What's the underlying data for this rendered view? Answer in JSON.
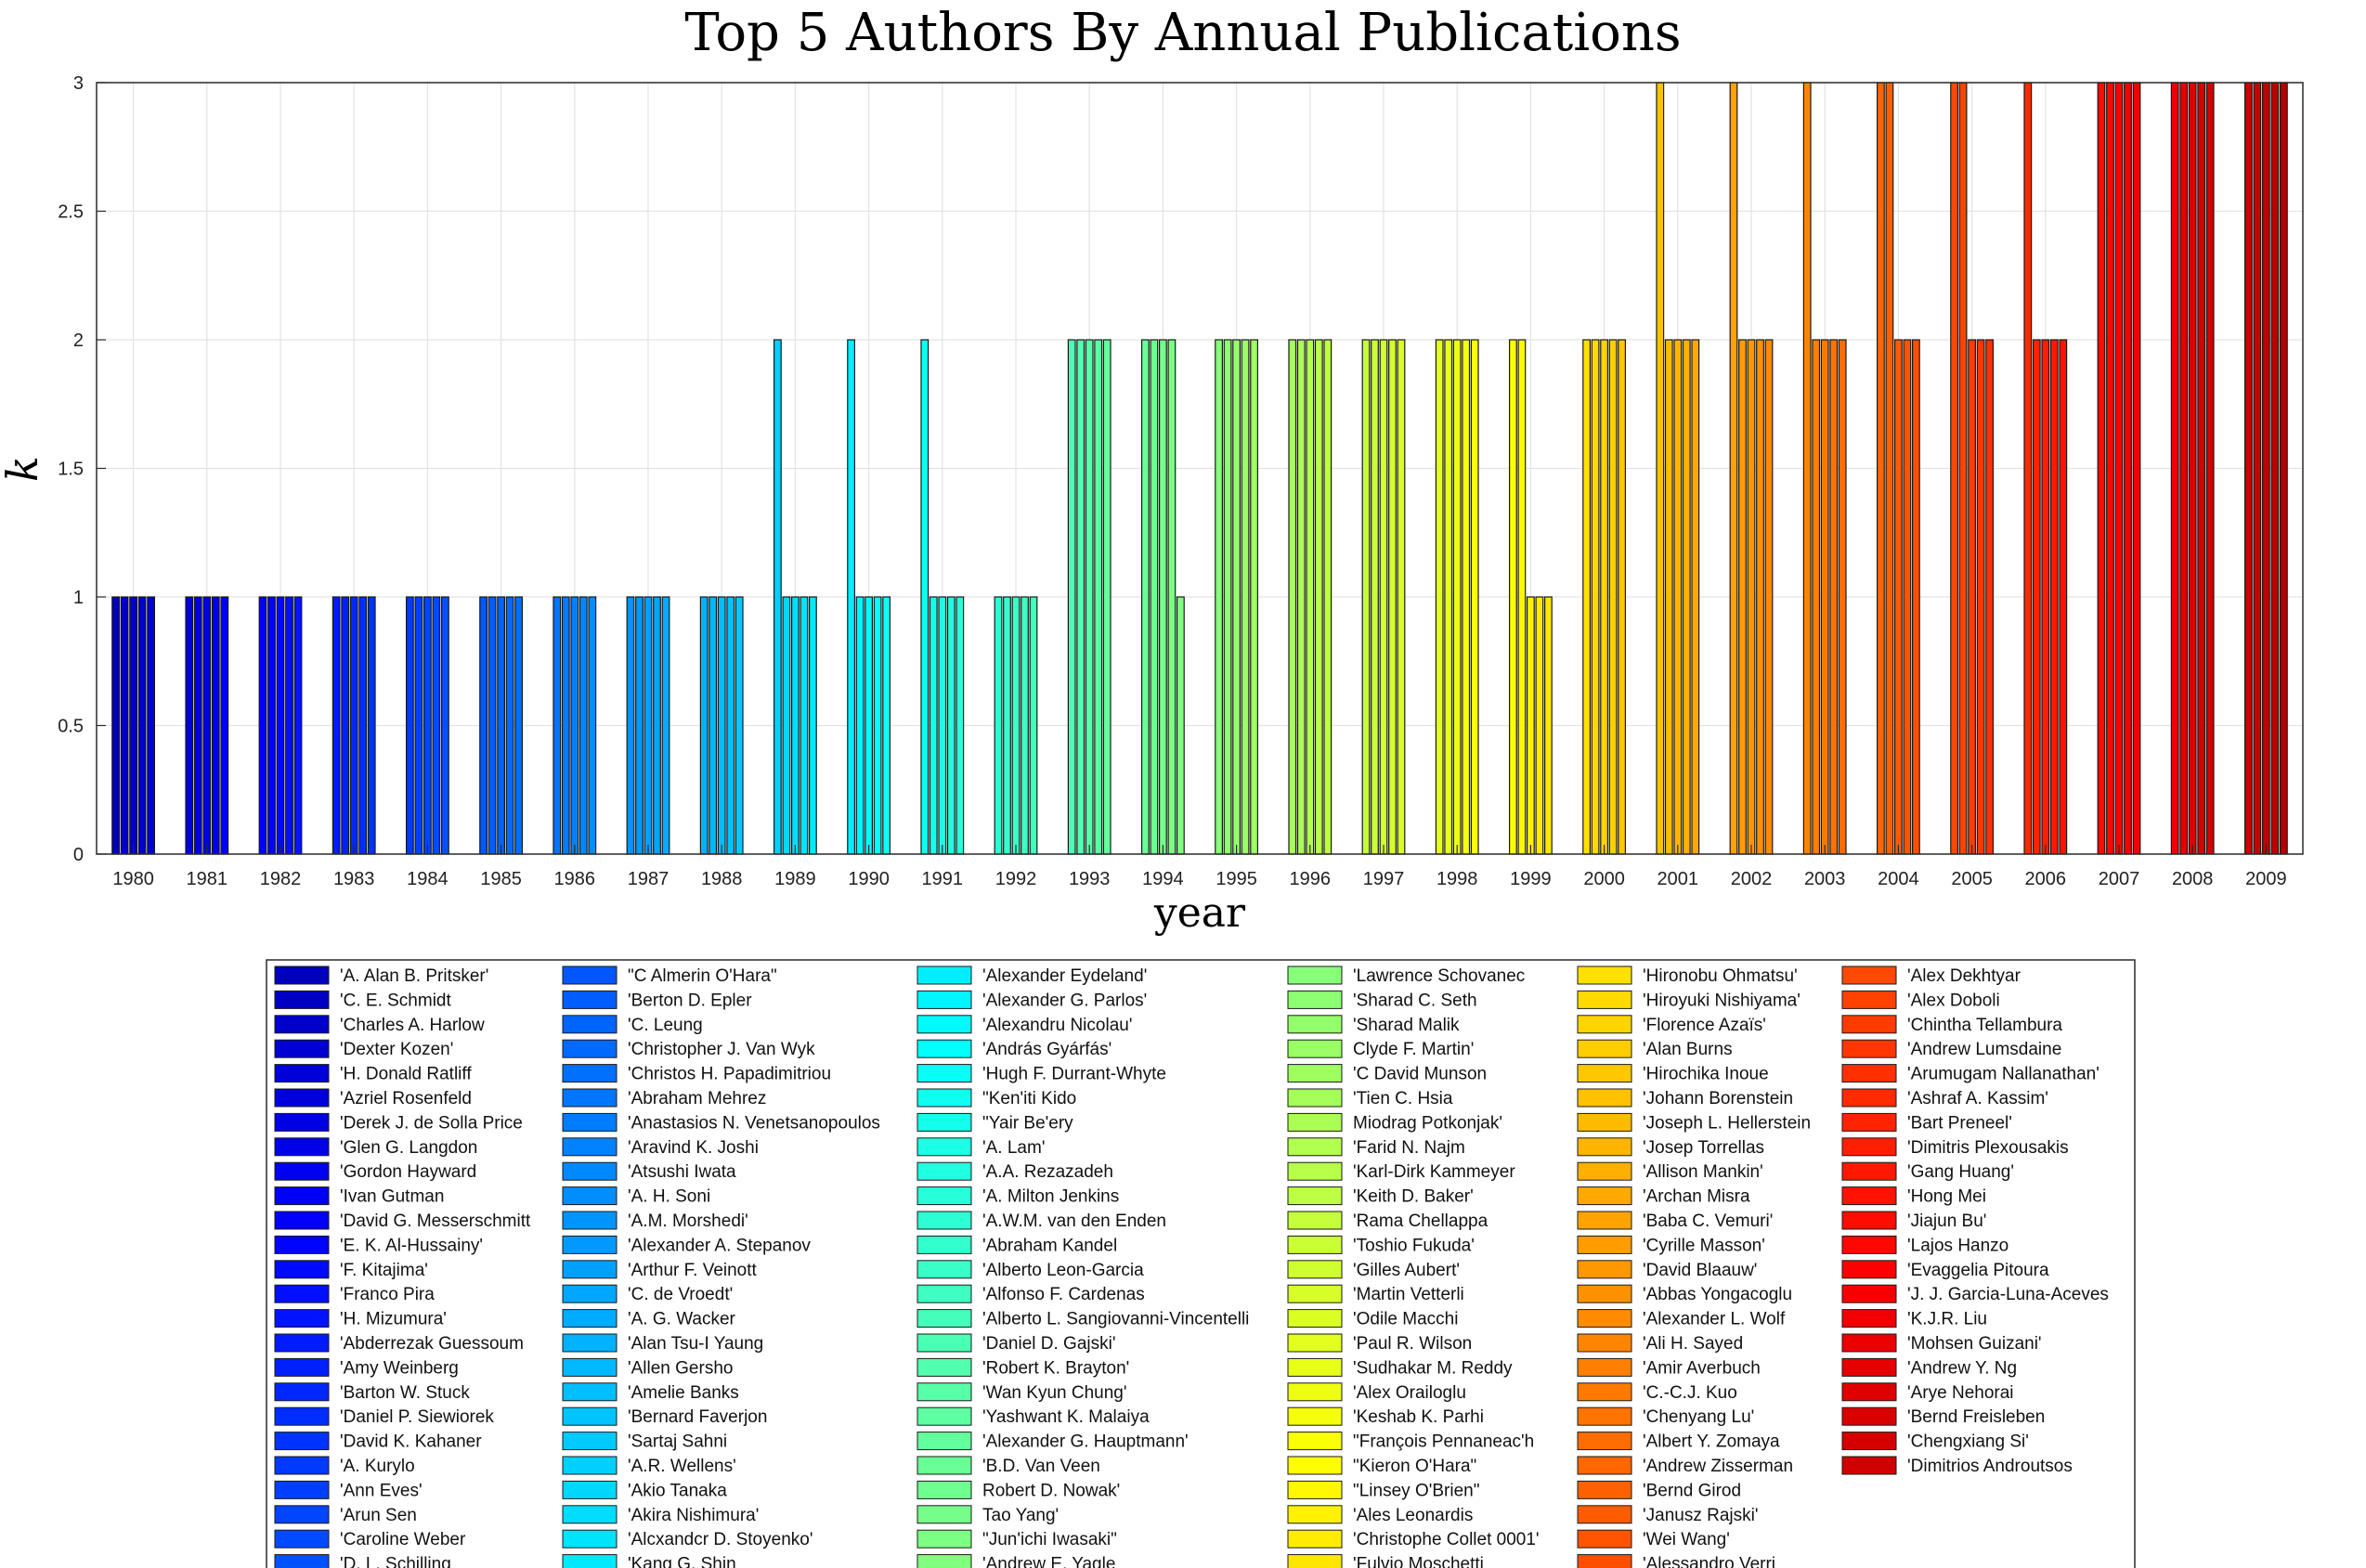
{
  "chart_data": {
    "type": "bar",
    "title": "Top 5 Authors By Annual Publications",
    "xlabel": "year",
    "ylabel": "k",
    "ylim": [
      0,
      3
    ],
    "yticks": [
      "0",
      "0.5",
      "1",
      "1.5",
      "2",
      "2.5",
      "3"
    ],
    "grid": true,
    "legend_position": "bottom",
    "categories": [
      "1980",
      "1981",
      "1982",
      "1983",
      "1984",
      "1985",
      "1986",
      "1987",
      "1988",
      "1989",
      "1990",
      "1991",
      "1992",
      "1993",
      "1994",
      "1995",
      "1996",
      "1997",
      "1998",
      "1999",
      "2000",
      "2001",
      "2002",
      "2003",
      "2004",
      "2005",
      "2006",
      "2007",
      "2008",
      "2009"
    ],
    "values": [
      [
        1,
        1,
        1,
        1,
        1
      ],
      [
        1,
        1,
        1,
        1,
        1
      ],
      [
        1,
        1,
        1,
        1,
        1
      ],
      [
        1,
        1,
        1,
        1,
        1
      ],
      [
        1,
        1,
        1,
        1,
        1
      ],
      [
        1,
        1,
        1,
        1,
        1
      ],
      [
        1,
        1,
        1,
        1,
        1
      ],
      [
        1,
        1,
        1,
        1,
        1
      ],
      [
        1,
        1,
        1,
        1,
        1
      ],
      [
        2,
        1,
        1,
        1,
        1
      ],
      [
        2,
        1,
        1,
        1,
        1
      ],
      [
        2,
        1,
        1,
        1,
        1
      ],
      [
        1,
        1,
        1,
        1,
        1
      ],
      [
        2,
        2,
        2,
        2,
        2
      ],
      [
        2,
        2,
        2,
        2,
        1
      ],
      [
        2,
        2,
        2,
        2,
        2
      ],
      [
        2,
        2,
        2,
        2,
        2
      ],
      [
        2,
        2,
        2,
        2,
        2
      ],
      [
        2,
        2,
        2,
        2,
        2
      ],
      [
        2,
        2,
        1,
        1,
        1
      ],
      [
        2,
        2,
        2,
        2,
        2
      ],
      [
        3,
        2,
        2,
        2,
        2
      ],
      [
        3,
        2,
        2,
        2,
        2
      ],
      [
        3,
        2,
        2,
        2,
        2
      ],
      [
        3,
        3,
        2,
        2,
        2
      ],
      [
        3,
        3,
        2,
        2,
        2
      ],
      [
        3,
        2,
        2,
        2,
        2
      ],
      [
        3,
        3,
        3,
        3,
        3
      ],
      [
        3,
        3,
        3,
        3,
        3
      ],
      [
        3,
        3,
        3,
        3,
        3
      ]
    ],
    "authors": [
      "'A. Alan B. Pritsker'",
      "'C. E. Schmidt",
      "'Charles A. Harlow",
      "'Dexter Kozen'",
      "'H. Donald Ratliff",
      "'Azriel Rosenfeld",
      "'Derek J. de Solla Price",
      "'Glen G. Langdon",
      "'Gordon Hayward",
      "'Ivan Gutman",
      "'David G. Messerschmitt",
      "'E. K. Al-Hussainy'",
      "'F. Kitajima'",
      "'Franco Pira",
      "'H. Mizumura'",
      "'Abderrezak Guessoum",
      "'Amy Weinberg",
      "'Barton W. Stuck",
      "'Daniel P. Siewiorek",
      "'David K. Kahaner",
      "'A. Kurylo",
      "'Ann Eves'",
      "'Arun Sen",
      "'Caroline Weber",
      "'D. L. Schilling",
      "\"C Almerin O'Hara\"",
      "'Berton D. Epler",
      "'C. Leung",
      "'Christopher J. Van Wyk",
      "'Christos H. Papadimitriou",
      "'Abraham Mehrez",
      "'Anastasios N. Venetsanopoulos",
      "'Aravind K. Joshi",
      "'Atsushi Iwata",
      "'A. H. Soni",
      "'A.M. Morshedi'",
      "'Alexander A. Stepanov",
      "'Arthur F. Veinott",
      "'C. de Vroedt'",
      "'A. G. Wacker",
      "'Alan Tsu-I Yaung",
      "'Allen Gersho",
      "'Amelie Banks",
      "'Bernard Faverjon",
      "'Sartaj Sahni",
      "'A.R. Wellens'",
      "'Akio Tanaka",
      "'Akira Nishimura'",
      "'Alcxandcr D. Stoyenko'",
      "'Kang G. Shin",
      "'Alexander Eydeland'",
      "'Alexander G. Parlos'",
      "'Alexandru Nicolau'",
      "'András Gyárfás'",
      "'Hugh F. Durrant-Whyte",
      "\"Ken'iti Kido",
      "\"Yair Be'ery",
      "'A. Lam'",
      "'A.A. Rezazadeh",
      "'A. Milton Jenkins",
      "'A.W.M. van den Enden",
      "'Abraham Kandel",
      "'Alberto Leon-Garcia",
      "'Alfonso F. Cardenas",
      "'Alberto L. Sangiovanni-Vincentelli",
      "'Daniel D. Gajski'",
      "'Robert K. Brayton'",
      "'Wan Kyun Chung'",
      "'Yashwant K. Malaiya",
      "'Alexander G. Hauptmann'",
      "'B.D. Van Veen",
      "Robert D. Nowak'",
      "Tao Yang'",
      "\"Jun'ichi Iwasaki\"",
      "'Andrew E. Yagle",
      "'Lawrence Schovanec",
      "'Sharad C. Seth",
      "'Sharad Malik",
      "Clyde F. Martin'",
      "'C David Munson",
      "'Tien C. Hsia",
      "Miodrag Potkonjak'",
      "'Farid N. Najm",
      "'Karl-Dirk Kammeyer",
      "'Keith D. Baker'",
      "'Rama Chellappa",
      "'Toshio Fukuda'",
      "'Gilles Aubert'",
      "'Martin Vetterli",
      "'Odile Macchi",
      "'Paul R. Wilson",
      "'Sudhakar M. Reddy",
      "'Alex Orailoglu",
      "'Keshab K. Parhi",
      "\"François Pennaneac'h",
      "\"Kieron O'Hara\"",
      "\"Linsey O'Brien\"",
      "'Ales Leonardis",
      "'Christophe Collet 0001'",
      "'Fulvio Moschetti",
      "'Hironobu Ohmatsu'",
      "'Hiroyuki Nishiyama'",
      "'Florence Azaïs'",
      "'Alan Burns",
      "'Hirochika Inoue",
      "'Johann Borenstein",
      "'Joseph L. Hellerstein",
      "'Josep Torrellas",
      "'Allison Mankin'",
      "'Archan Misra",
      "'Baba C. Vemuri'",
      "'Cyrille Masson'",
      "'David Blaauw'",
      "'Abbas Yongacoglu",
      "'Alexander L. Wolf",
      "'Ali H. Sayed",
      "'Amir Averbuch",
      "'C.-C.J. Kuo",
      "'Chenyang Lu'",
      "'Albert Y. Zomaya",
      "'Andrew Zisserman",
      "'Bernd Girod",
      "'Janusz Rajski'",
      "'Wei Wang'",
      "'Alessandro Verri",
      "'Alex Dekhtyar",
      "'Alex Doboli",
      "'Chintha Tellambura",
      "'Andrew Lumsdaine",
      "'Arumugam Nallanathan'",
      "'Ashraf A. Kassim'",
      "'Bart Preneel'",
      "'Dimitris Plexousakis",
      "'Gang Huang'",
      "'Hong Mei",
      "'Jiajun Bu'",
      "'Lajos Hanzo",
      "'Evaggelia Pitoura",
      "'J. J. Garcia-Luna-Aceves",
      "'K.J.R. Liu",
      "'Mohsen Guizani'",
      "'Andrew Y. Ng",
      "'Arye Nehorai",
      "'Bernd Freisleben",
      "'Chengxiang Si'",
      "'Dimitrios Androutsos"
    ],
    "colormap": "jet"
  }
}
